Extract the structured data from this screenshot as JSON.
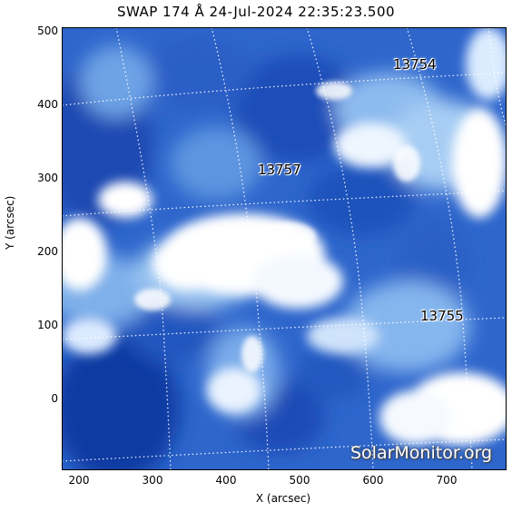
{
  "title": "SWAP 174 Å 24-Jul-2024 22:35:23.500",
  "axes": {
    "xlabel": "X (arcsec)",
    "ylabel": "Y (arcsec)",
    "xticks": [
      "200",
      "300",
      "400",
      "500",
      "600",
      "700"
    ],
    "yticks": [
      "500",
      "400",
      "300",
      "200",
      "100",
      "0"
    ]
  },
  "regions": {
    "r13754": "13754",
    "r13757": "13757",
    "r13755": "13755"
  },
  "watermark": "SolarMonitor.org",
  "colors": {
    "dark": "#0a2f9a",
    "mid": "#3a78d4",
    "light": "#a9cdf2",
    "white": "#ffffff"
  }
}
